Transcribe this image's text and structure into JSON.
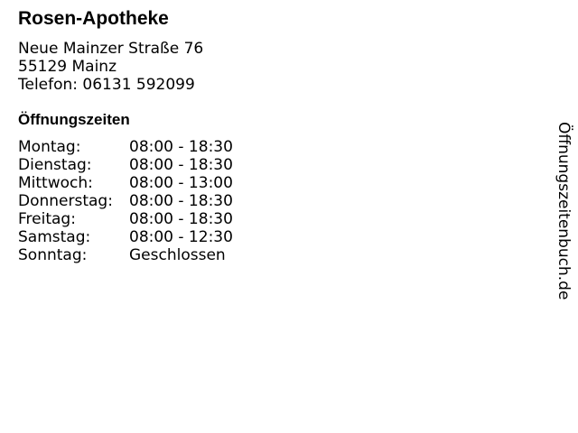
{
  "title": "Rosen-Apotheke",
  "address": {
    "street": "Neue Mainzer Straße 76",
    "city": "55129 Mainz",
    "phone": "Telefon: 06131 592099"
  },
  "hours_heading": "Öffnungszeiten",
  "hours": [
    {
      "day": "Montag:",
      "time": "08:00 - 18:30"
    },
    {
      "day": "Dienstag:",
      "time": "08:00 - 18:30"
    },
    {
      "day": "Mittwoch:",
      "time": "08:00 - 13:00"
    },
    {
      "day": "Donnerstag:",
      "time": "08:00 - 18:30"
    },
    {
      "day": "Freitag:",
      "time": "08:00 - 18:30"
    },
    {
      "day": "Samstag:",
      "time": "08:00 - 12:30"
    },
    {
      "day": "Sonntag:",
      "time": "Geschlossen"
    }
  ],
  "watermark": "Öffnungszeitenbuch.de"
}
